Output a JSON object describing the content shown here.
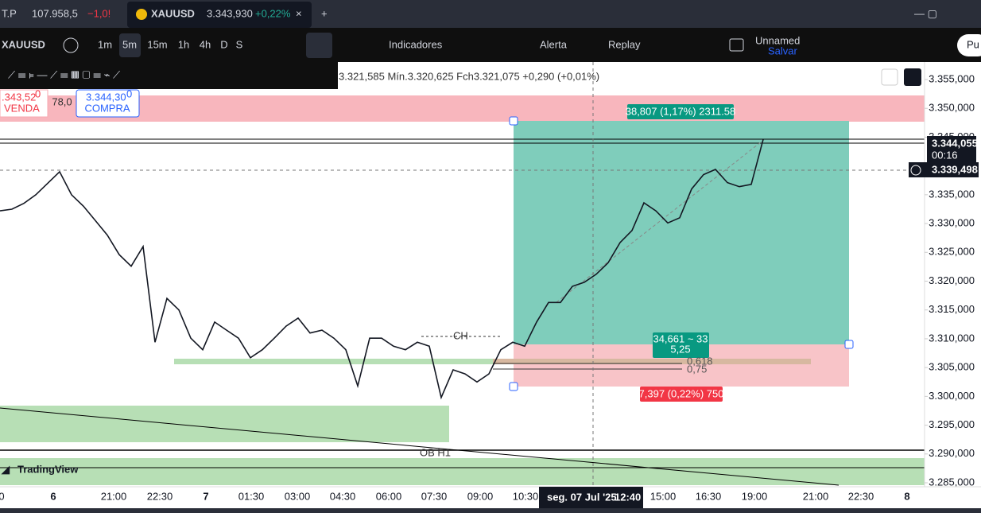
{
  "tabs": {
    "first": {
      "symbol": "T.P",
      "price": "107.958,5",
      "change": "−1,0!"
    },
    "active": {
      "symbol": "XAUUSD",
      "price": "3.343,930",
      "change": "+0,22%"
    }
  },
  "toolbar": {
    "symbol": "XAUUSD",
    "intervals": [
      "1m",
      "5m",
      "15m",
      "1h",
      "4h",
      "D",
      "S"
    ],
    "indicators": "Indicadores",
    "alert": "Alerta",
    "replay": "Replay",
    "layout_name": "Unnamed",
    "save": "Salvar",
    "publish": "Pu"
  },
  "legend": {
    "ohlc": "3.321,585  Mín.3.320,625  Fch3.321,075  +0,290 (+0,01%)"
  },
  "trade": {
    "sell_price": ".343,52",
    "sell_sup": "0",
    "sell_label": "VENDA",
    "spread": "78,0",
    "buy_price": "3.344,30",
    "buy_sup": "0",
    "buy_label": "COMPRA"
  },
  "position": {
    "target": "38,807 (1,17%) 2311.58",
    "center_1": "34,661 ~ 33",
    "center_2": "5,25",
    "stop": "7,397 (0,22%) 750"
  },
  "annotations": {
    "fib_1": "0,618",
    "fib_2": "0,75",
    "ch": "CH",
    "ob": "OB H1",
    "brand": "TradingView"
  },
  "price_labels": {
    "last": "3.344,055",
    "countdown": "00:16",
    "crosshair": "3.339,498"
  },
  "crosshair_time": {
    "date": "seg. 07 Jul '25",
    "time": "12:40"
  },
  "chart": {
    "prices": [
      3332.2,
      3332.5,
      3333.5,
      3335.0,
      3337.0,
      3339.0,
      3335.0,
      3333.0,
      3330.5,
      3328.0,
      3324.6,
      3322.6,
      3326.0,
      3309.4,
      3317.0,
      3315.0,
      3310.1,
      3308.1,
      3312.9,
      3311.5,
      3310.1,
      3306.7,
      3308.1,
      3310.1,
      3312.2,
      3313.6,
      3311.0,
      3311.5,
      3310.1,
      3308.1,
      3301.8,
      3310.1,
      3310.1,
      3308.7,
      3308.1,
      3309.4,
      3308.7,
      3299.8,
      3304.6,
      3303.9,
      3302.5,
      3303.9,
      3308.1,
      3309.4,
      3308.7,
      3312.9,
      3316.3,
      3316.3,
      3319.1,
      3319.8,
      3321.2,
      3323.2,
      3326.7,
      3328.8,
      3333.6,
      3332.2,
      3330.1,
      3331.0,
      3336.0,
      3338.5,
      3339.4,
      3337.1,
      3336.4,
      3336.8,
      3344.6
    ],
    "ylim": [
      3285,
      3355
    ],
    "yticks": [
      {
        "value": 3355,
        "label": "3.355,000"
      },
      {
        "value": 3350,
        "label": "3.350,000"
      },
      {
        "value": 3345,
        "label": "3.345,000"
      },
      {
        "value": 3340,
        "label": "3.340,000"
      },
      {
        "value": 3335,
        "label": "3.335,000"
      },
      {
        "value": 3330,
        "label": "3.330,000"
      },
      {
        "value": 3325,
        "label": "3.325,000"
      },
      {
        "value": 3320,
        "label": "3.320,000"
      },
      {
        "value": 3315,
        "label": "3.315,000"
      },
      {
        "value": 3310,
        "label": "3.310,000"
      },
      {
        "value": 3305,
        "label": "3.305,000"
      },
      {
        "value": 3300,
        "label": "3.300,000"
      },
      {
        "value": 3295,
        "label": "3.295,000"
      },
      {
        "value": 3290,
        "label": "3.290,000"
      },
      {
        "value": 3285,
        "label": "3.285,000"
      }
    ],
    "time_labels": [
      "0",
      "6",
      "21:00",
      "22:30",
      "7",
      "01:30",
      "03:00",
      "04:30",
      "06:00",
      "07:30",
      "09:00",
      "10:30",
      "15:00",
      "16:30",
      "19:00",
      "21:00",
      "22:30",
      "8"
    ]
  }
}
